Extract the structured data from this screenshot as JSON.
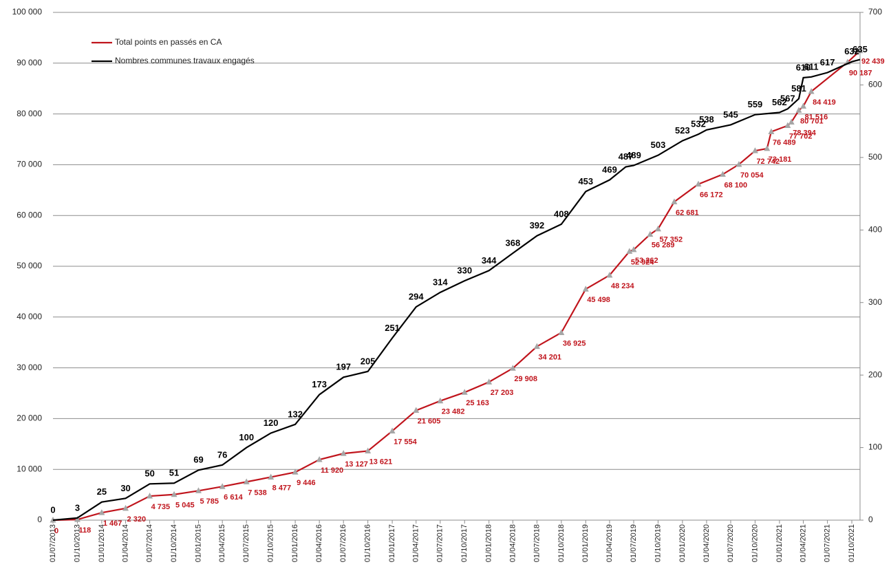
{
  "chart_data": {
    "type": "line",
    "legend": "upper left",
    "grid": true,
    "xlim": [
      "01/07/2013",
      "01/11/2021"
    ],
    "xticks": [
      "01/07/2013",
      "01/10/2013",
      "01/01/2014",
      "01/04/2014",
      "01/07/2014",
      "01/10/2014",
      "01/01/2015",
      "01/04/2015",
      "01/07/2015",
      "01/10/2015",
      "01/01/2016",
      "01/04/2016",
      "01/07/2016",
      "01/10/2016",
      "01/01/2017",
      "01/04/2017",
      "01/07/2017",
      "01/10/2017",
      "01/01/2018",
      "01/04/2018",
      "01/07/2018",
      "01/10/2018",
      "01/01/2019",
      "01/04/2019",
      "01/07/2019",
      "01/10/2019",
      "01/01/2020",
      "01/04/2020",
      "01/07/2020",
      "01/10/2020",
      "01/01/2021",
      "01/04/2021",
      "01/07/2021",
      "01/10/2021"
    ],
    "ylim": [
      0,
      100000
    ],
    "yticks": [
      0,
      {
        "value": 10000,
        "label": "10 000"
      },
      {
        "value": 20000,
        "label": "20 000"
      },
      {
        "value": 30000,
        "label": "30 000"
      },
      {
        "value": 40000,
        "label": "40 000"
      },
      {
        "value": 50000,
        "label": "50 000"
      },
      {
        "value": 60000,
        "label": "60 000"
      },
      {
        "value": 70000,
        "label": "70 000"
      },
      {
        "value": 80000,
        "label": "80 000"
      },
      {
        "value": 90000,
        "label": "90 000"
      },
      {
        "value": 100000,
        "label": "100 000"
      }
    ],
    "y2lim": [
      0,
      700
    ],
    "y2ticks": [
      0,
      100,
      200,
      300,
      400,
      500,
      600,
      700
    ],
    "series": [
      {
        "name": "Total points en passés en CA",
        "color": "#c0141c",
        "marker": "triangle",
        "marker_color": "#a6a6a6",
        "x": [
          "01/07/2013",
          "01/10/2013",
          "01/01/2014",
          "01/04/2014",
          "01/07/2014",
          "01/10/2014",
          "01/01/2015",
          "01/04/2015",
          "01/07/2015",
          "01/10/2015",
          "01/01/2016",
          "01/04/2016",
          "01/07/2016",
          "01/10/2016",
          "01/01/2017",
          "01/04/2017",
          "01/07/2017",
          "01/10/2017",
          "01/01/2018",
          "01/04/2018",
          "01/07/2018",
          "01/10/2018",
          "01/01/2019",
          "01/04/2019",
          "15/06/2019",
          "01/07/2019",
          "01/09/2019",
          "01/10/2019",
          "01/12/2019",
          "01/03/2020",
          "01/06/2020",
          "01/08/2020",
          "01/10/2020",
          "15/11/2020",
          "01/12/2020",
          "01/02/2021",
          "15/02/2021",
          "15/03/2021",
          "01/04/2021",
          "01/05/2021",
          "15/09/2021",
          "01/11/2021"
        ],
        "values": [
          0,
          118,
          1467,
          2320,
          4735,
          5045,
          5785,
          6614,
          7538,
          8477,
          9446,
          11920,
          13127,
          13621,
          17554,
          21605,
          23482,
          25163,
          27203,
          29908,
          34201,
          36925,
          45498,
          48234,
          52924,
          53262,
          56289,
          57352,
          62681,
          66172,
          68100,
          70054,
          72742,
          73181,
          76489,
          77702,
          78394,
          80701,
          81516,
          84419,
          90187,
          92439
        ],
        "value_labels": [
          "0",
          "118",
          "1 467",
          "2 320",
          "4 735",
          "5 045",
          "5 785",
          "6 614",
          "7 538",
          "8 477",
          "9 446",
          "11 920",
          "13 127",
          "13 621",
          "17 554",
          "21 605",
          "23 482",
          "25 163",
          "27 203",
          "29 908",
          "34 201",
          "36 925",
          "45 498",
          "48 234",
          "52 924",
          "53 262",
          "56 289",
          "57 352",
          "62 681",
          "66 172",
          "68 100",
          "70 054",
          "72 742",
          "73 181",
          "76 489",
          "77 702",
          "78 394",
          "80 701",
          "81 516",
          "84 419",
          "90 187",
          "92 439"
        ]
      },
      {
        "name": "Nombres communes travaux engagés",
        "color": "#000000",
        "axis": "y2",
        "x": [
          "01/07/2013",
          "01/10/2013",
          "01/01/2014",
          "01/04/2014",
          "01/07/2014",
          "01/10/2014",
          "01/01/2015",
          "01/04/2015",
          "01/07/2015",
          "01/10/2015",
          "01/01/2016",
          "01/04/2016",
          "01/07/2016",
          "01/10/2016",
          "01/01/2017",
          "01/04/2017",
          "01/07/2017",
          "01/10/2017",
          "01/01/2018",
          "01/04/2018",
          "01/07/2018",
          "01/10/2018",
          "01/01/2019",
          "01/04/2019",
          "01/06/2019",
          "01/07/2019",
          "01/10/2019",
          "01/01/2020",
          "01/03/2020",
          "01/04/2020",
          "01/07/2020",
          "01/10/2020",
          "01/01/2021",
          "01/02/2021",
          "15/03/2021",
          "01/04/2021",
          "01/05/2021",
          "01/07/2021",
          "01/10/2021",
          "01/11/2021"
        ],
        "values": [
          0,
          3,
          25,
          30,
          50,
          51,
          69,
          76,
          100,
          120,
          132,
          173,
          197,
          205,
          251,
          294,
          314,
          330,
          344,
          368,
          392,
          408,
          453,
          469,
          487,
          489,
          503,
          523,
          532,
          538,
          545,
          559,
          562,
          567,
          581,
          610,
          611,
          617,
          632,
          635
        ]
      }
    ]
  }
}
